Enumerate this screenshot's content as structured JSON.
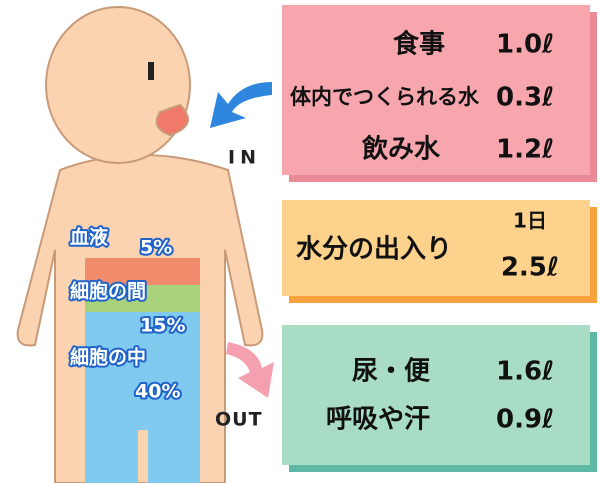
{
  "body": {
    "layers": [
      {
        "label": "血液",
        "share": "5%"
      },
      {
        "label": "細胞の間",
        "share": "15%"
      },
      {
        "label": "細胞の中",
        "share": "40%"
      }
    ]
  },
  "in": {
    "label": "IN",
    "rows": [
      {
        "source": "食事",
        "amount": "1.0ℓ"
      },
      {
        "source": "体内でつくられる水",
        "amount": "0.3ℓ"
      },
      {
        "source": "飲み水",
        "amount": "1.2ℓ"
      }
    ]
  },
  "summary": {
    "title": "水分の出入り",
    "period": "1日",
    "amount": "2.5ℓ"
  },
  "out": {
    "label": "OUT",
    "rows": [
      {
        "source": "尿・便",
        "amount": "1.6ℓ"
      },
      {
        "source": "呼吸や汗",
        "amount": "0.9ℓ"
      }
    ]
  }
}
